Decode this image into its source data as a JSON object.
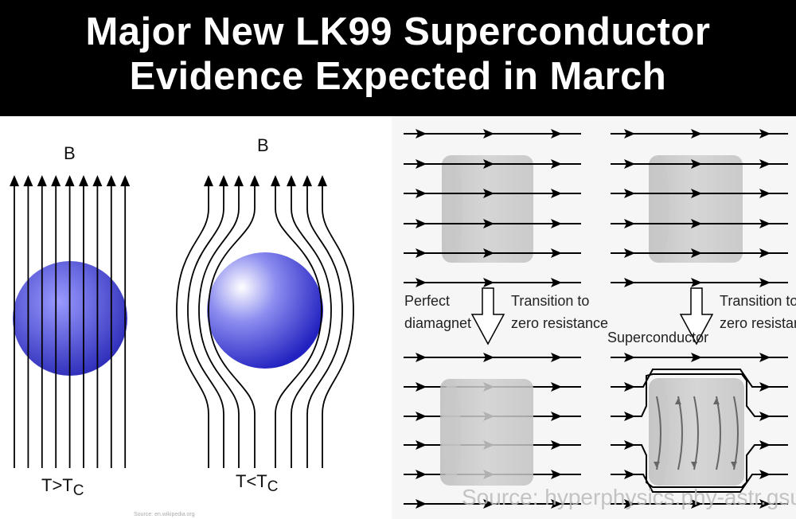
{
  "headline": {
    "line1": "Major New LK99 Superconductor",
    "line2": "Evidence Expected in March"
  },
  "left_figure": {
    "field_label_1": "B",
    "field_label_2": "B",
    "caption_1": "T>T",
    "caption_1_sub": "C",
    "caption_2": "T<T",
    "caption_2_sub": "C",
    "source": "Source: en.wikipedia.org",
    "sphere_color": "#3434c8"
  },
  "right_figure": {
    "left_label": [
      "Perfect",
      "diamagnet"
    ],
    "transition_label_1": [
      "Transition to",
      "zero resistance"
    ],
    "superconductor_label": "Superconductor",
    "transition_label_2": [
      "Transition to",
      "zero resistance"
    ],
    "source": "Source: hyperphysics.phy-astr.gsu.edu"
  }
}
